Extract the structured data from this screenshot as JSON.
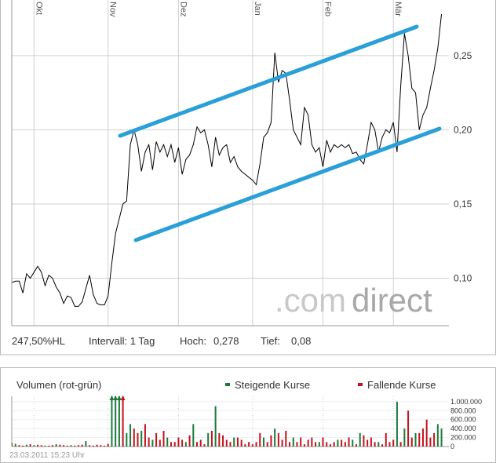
{
  "chart_data": [
    {
      "type": "line",
      "color": "#000000",
      "grid": true,
      "x": [
        0,
        1,
        2,
        3,
        4,
        5,
        6,
        7,
        8,
        9,
        10,
        11,
        12,
        13,
        14,
        15,
        16,
        17,
        18,
        19,
        20,
        21,
        22,
        23,
        24,
        25,
        26,
        27,
        28,
        29,
        30,
        31,
        32,
        33,
        34,
        35,
        36,
        37,
        38,
        39,
        40,
        41,
        42,
        43,
        44,
        45,
        46,
        47,
        48,
        49,
        50,
        51,
        52,
        53,
        54,
        55,
        56,
        57,
        58,
        59,
        60,
        61,
        62,
        63,
        64,
        65,
        66,
        67,
        68,
        69,
        70,
        71,
        72,
        73,
        74,
        75,
        76,
        77,
        78,
        79,
        80,
        81,
        82,
        83,
        84,
        85,
        86,
        87,
        88,
        89,
        90,
        91,
        92,
        93,
        94,
        95,
        96,
        97,
        98,
        99,
        100,
        101,
        102,
        103,
        104,
        105,
        106,
        107,
        108,
        109,
        110,
        111,
        112,
        113,
        114,
        115,
        116
      ],
      "values": [
        0.097,
        0.098,
        0.098,
        0.09,
        0.103,
        0.1,
        0.104,
        0.108,
        0.104,
        0.095,
        0.102,
        0.1,
        0.094,
        0.09,
        0.083,
        0.088,
        0.087,
        0.081,
        0.081,
        0.084,
        0.093,
        0.102,
        0.089,
        0.083,
        0.082,
        0.082,
        0.088,
        0.11,
        0.13,
        0.14,
        0.15,
        0.152,
        0.19,
        0.2,
        0.19,
        0.172,
        0.185,
        0.19,
        0.173,
        0.192,
        0.185,
        0.19,
        0.182,
        0.19,
        0.178,
        0.188,
        0.17,
        0.18,
        0.183,
        0.19,
        0.202,
        0.198,
        0.2,
        0.19,
        0.175,
        0.195,
        0.183,
        0.188,
        0.19,
        0.178,
        0.182,
        0.175,
        0.172,
        0.17,
        0.168,
        0.166,
        0.163,
        0.177,
        0.195,
        0.198,
        0.205,
        0.252,
        0.232,
        0.24,
        0.238,
        0.22,
        0.2,
        0.195,
        0.19,
        0.215,
        0.21,
        0.19,
        0.185,
        0.188,
        0.175,
        0.193,
        0.185,
        0.19,
        0.188,
        0.19,
        0.188,
        0.19,
        0.184,
        0.185,
        0.18,
        0.177,
        0.19,
        0.205,
        0.2,
        0.185,
        0.195,
        0.2,
        0.198,
        0.205,
        0.185,
        0.23,
        0.265,
        0.25,
        0.228,
        0.225,
        0.2,
        0.21,
        0.215,
        0.228,
        0.24,
        0.255,
        0.278
      ],
      "xlim": [
        0,
        118
      ],
      "xticks": [
        {
          "value": 6,
          "label": "Okt"
        },
        {
          "value": 26,
          "label": "Nov"
        },
        {
          "value": 45,
          "label": "Dez"
        },
        {
          "value": 65,
          "label": "Jan"
        },
        {
          "value": 84,
          "label": "Feb"
        },
        {
          "value": 103,
          "label": "Mär"
        }
      ],
      "ylim": [
        0.068,
        0.2875
      ],
      "yticks": [
        {
          "value": 0.1,
          "label": "0,10"
        },
        {
          "value": 0.15,
          "label": "0,15"
        },
        {
          "value": 0.2,
          "label": "0,20"
        },
        {
          "value": 0.25,
          "label": "0,25"
        }
      ]
    },
    {
      "type": "bar",
      "title": "Volumen (rot-grün)",
      "grid": true,
      "x": [
        0,
        1,
        2,
        3,
        4,
        5,
        6,
        7,
        8,
        9,
        10,
        11,
        12,
        13,
        14,
        15,
        16,
        17,
        18,
        19,
        20,
        21,
        22,
        23,
        24,
        25,
        26,
        27,
        28,
        29,
        30,
        31,
        32,
        33,
        34,
        35,
        36,
        37,
        38,
        39,
        40,
        41,
        42,
        43,
        44,
        45,
        46,
        47,
        48,
        49,
        50,
        51,
        52,
        53,
        54,
        55,
        56,
        57,
        58,
        59,
        60,
        61,
        62,
        63,
        64,
        65,
        66,
        67,
        68,
        69,
        70,
        71,
        72,
        73,
        74,
        75,
        76,
        77,
        78,
        79,
        80,
        81,
        82,
        83,
        84,
        85,
        86,
        87,
        88,
        89,
        90,
        91,
        92,
        93,
        94,
        95,
        96,
        97,
        98,
        99,
        100,
        101,
        102,
        103,
        104,
        105,
        106,
        107,
        108,
        109,
        110,
        111,
        112,
        113,
        114,
        115,
        116
      ],
      "xlim": [
        0,
        118
      ],
      "series": [
        {
          "name": "Steigende Kurse",
          "color": "#1a7a3c",
          "values": [
            null,
            60000,
            null,
            null,
            40000,
            null,
            30000,
            null,
            null,
            20000,
            null,
            null,
            50000,
            null,
            null,
            null,
            30000,
            null,
            null,
            null,
            120000,
            null,
            null,
            null,
            null,
            null,
            null,
            1200000,
            1200000,
            1200000,
            null,
            300000,
            500000,
            null,
            null,
            350000,
            null,
            null,
            150000,
            null,
            null,
            null,
            200000,
            null,
            null,
            null,
            null,
            100000,
            null,
            500000,
            null,
            null,
            null,
            300000,
            null,
            900000,
            null,
            null,
            null,
            null,
            200000,
            null,
            null,
            null,
            null,
            null,
            null,
            null,
            200000,
            null,
            null,
            400000,
            null,
            null,
            null,
            null,
            200000,
            null,
            null,
            null,
            null,
            null,
            null,
            100000,
            null,
            null,
            null,
            null,
            150000,
            null,
            null,
            null,
            150000,
            null,
            300000,
            null,
            null,
            null,
            null,
            100000,
            null,
            null,
            null,
            null,
            1000000,
            null,
            400000,
            null,
            null,
            300000,
            null,
            null,
            null,
            null,
            null,
            500000,
            400000
          ]
        },
        {
          "name": "Fallende Kurse",
          "color": "#c0141e",
          "values": [
            80000,
            null,
            30000,
            20000,
            null,
            50000,
            null,
            40000,
            30000,
            null,
            20000,
            30000,
            null,
            40000,
            30000,
            20000,
            null,
            20000,
            30000,
            40000,
            null,
            30000,
            20000,
            40000,
            30000,
            20000,
            60000,
            null,
            null,
            null,
            1200000,
            null,
            null,
            400000,
            300000,
            null,
            500000,
            200000,
            null,
            300000,
            150000,
            350000,
            null,
            100000,
            100000,
            200000,
            150000,
            null,
            250000,
            null,
            100000,
            150000,
            50000,
            null,
            350000,
            null,
            300000,
            250000,
            150000,
            100000,
            null,
            200000,
            150000,
            50000,
            100000,
            50000,
            100000,
            300000,
            null,
            100000,
            250000,
            null,
            300000,
            150000,
            350000,
            100000,
            null,
            100000,
            200000,
            50000,
            150000,
            200000,
            100000,
            null,
            200000,
            100000,
            50000,
            100000,
            null,
            150000,
            100000,
            200000,
            null,
            50000,
            null,
            250000,
            150000,
            200000,
            100000,
            null,
            50000,
            300000,
            100000,
            150000,
            null,
            100000,
            null,
            800000,
            200000,
            null,
            300000,
            400000,
            600000,
            200000,
            300000,
            null,
            null
          ]
        }
      ],
      "ylim": [
        0,
        1120000
      ],
      "yticks": [
        {
          "value": 0,
          "label": "0"
        },
        {
          "value": 200000,
          "label": "200.000"
        },
        {
          "value": 400000,
          "label": "400.000"
        },
        {
          "value": 600000,
          "label": "600.000"
        },
        {
          "value": 800000,
          "label": "800.000"
        },
        {
          "value": 1000000,
          "label": "1.000.000"
        }
      ]
    }
  ],
  "info": {
    "ratio": "247,50%HL",
    "interval": "Intervall: 1 Tag",
    "high_label": "Hoch:",
    "high": "0,278",
    "low_label": "Tief:",
    "low": "0,08"
  },
  "logo": {
    "dot_com": ".com",
    "direct": "direct"
  },
  "timestamp": "23.03.2011 15:23 Uhr"
}
